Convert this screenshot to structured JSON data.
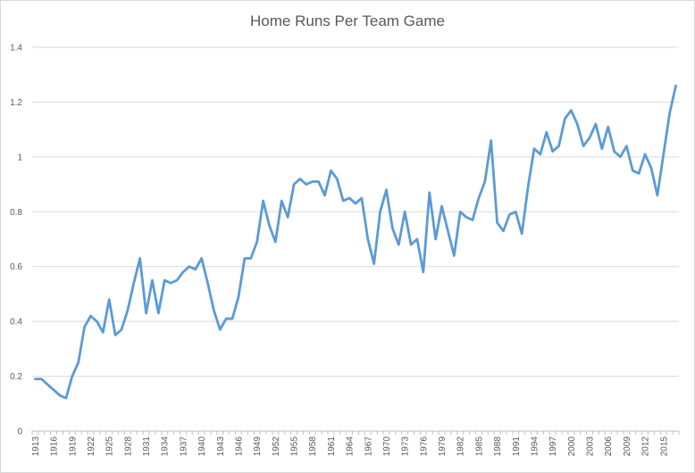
{
  "chart_data": {
    "type": "line",
    "title": "Home Runs Per Team Game",
    "xlabel": "",
    "ylabel": "",
    "ylim": [
      0,
      1.4
    ],
    "yticks": [
      "0",
      "0.2",
      "0.4",
      "0.6",
      "0.8",
      "1",
      "1.2",
      "1.4"
    ],
    "xticks": [
      "1913",
      "1916",
      "1919",
      "1922",
      "1925",
      "1928",
      "1931",
      "1934",
      "1937",
      "1940",
      "1943",
      "1946",
      "1949",
      "1952",
      "1955",
      "1958",
      "1961",
      "1964",
      "1967",
      "1970",
      "1973",
      "1976",
      "1979",
      "1982",
      "1985",
      "1988",
      "1991",
      "1994",
      "1997",
      "2000",
      "2003",
      "2006",
      "2009",
      "2012",
      "2015"
    ],
    "grid": true,
    "legend": "none",
    "line_color": "#5B9BD5",
    "x": [
      1913,
      1914,
      1915,
      1916,
      1917,
      1918,
      1919,
      1920,
      1921,
      1922,
      1923,
      1924,
      1925,
      1926,
      1927,
      1928,
      1929,
      1930,
      1931,
      1932,
      1933,
      1934,
      1935,
      1936,
      1937,
      1938,
      1939,
      1940,
      1941,
      1942,
      1943,
      1944,
      1945,
      1946,
      1947,
      1948,
      1949,
      1950,
      1951,
      1952,
      1953,
      1954,
      1955,
      1956,
      1957,
      1958,
      1959,
      1960,
      1961,
      1962,
      1963,
      1964,
      1965,
      1966,
      1967,
      1968,
      1969,
      1970,
      1971,
      1972,
      1973,
      1974,
      1975,
      1976,
      1977,
      1978,
      1979,
      1980,
      1981,
      1982,
      1983,
      1984,
      1985,
      1986,
      1987,
      1988,
      1989,
      1990,
      1991,
      1992,
      1993,
      1994,
      1995,
      1996,
      1997,
      1998,
      1999,
      2000,
      2001,
      2002,
      2003,
      2004,
      2005,
      2006,
      2007,
      2008,
      2009,
      2010,
      2011,
      2012,
      2013,
      2014,
      2015,
      2016,
      2017
    ],
    "series": [
      {
        "values": [
          0.19,
          0.19,
          0.17,
          0.15,
          0.13,
          0.12,
          0.2,
          0.25,
          0.38,
          0.42,
          0.4,
          0.36,
          0.48,
          0.35,
          0.37,
          0.44,
          0.54,
          0.63,
          0.43,
          0.55,
          0.43,
          0.55,
          0.54,
          0.55,
          0.58,
          0.6,
          0.59,
          0.63,
          0.54,
          0.44,
          0.37,
          0.41,
          0.41,
          0.49,
          0.63,
          0.63,
          0.69,
          0.84,
          0.75,
          0.69,
          0.84,
          0.78,
          0.9,
          0.92,
          0.9,
          0.91,
          0.91,
          0.86,
          0.95,
          0.92,
          0.84,
          0.85,
          0.83,
          0.85,
          0.7,
          0.61,
          0.8,
          0.88,
          0.74,
          0.68,
          0.8,
          0.68,
          0.7,
          0.58,
          0.87,
          0.7,
          0.82,
          0.73,
          0.64,
          0.8,
          0.78,
          0.77,
          0.85,
          0.91,
          1.06,
          0.76,
          0.73,
          0.79,
          0.8,
          0.72,
          0.89,
          1.03,
          1.01,
          1.09,
          1.02,
          1.04,
          1.14,
          1.17,
          1.12,
          1.04,
          1.07,
          1.12,
          1.03,
          1.11,
          1.02,
          1.0,
          1.04,
          0.95,
          0.94,
          1.01,
          0.96,
          0.86,
          1.01,
          1.16,
          1.26
        ]
      }
    ]
  }
}
